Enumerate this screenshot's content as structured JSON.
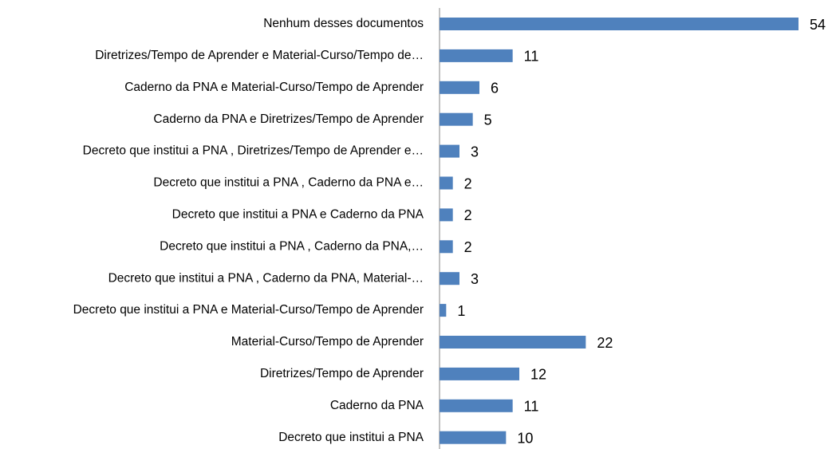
{
  "chart_data": {
    "type": "bar",
    "orientation": "horizontal",
    "categories": [
      "Nenhum desses documentos",
      "Diretrizes/Tempo de Aprender e Material-Curso/Tempo de…",
      "Caderno da PNA e Material-Curso/Tempo de Aprender",
      "Caderno da PNA e Diretrizes/Tempo de Aprender",
      "Decreto que institui a PNA ,  Diretrizes/Tempo de Aprender  e…",
      "Decreto que institui a PNA , Caderno da PNA e…",
      "Decreto que institui a PNA  e Caderno da PNA",
      "Decreto que institui a PNA , Caderno da PNA,…",
      "Decreto que institui a PNA , Caderno da PNA,  Material-…",
      "Decreto que institui a PNA e Material-Curso/Tempo de Aprender",
      "Material-Curso/Tempo de Aprender",
      "Diretrizes/Tempo de Aprender",
      "Caderno da PNA",
      "Decreto que institui a PNA"
    ],
    "values": [
      54,
      11,
      6,
      5,
      3,
      2,
      2,
      2,
      3,
      1,
      22,
      12,
      11,
      10
    ],
    "color": "#4f81bd",
    "xlim": [
      0,
      54
    ]
  }
}
